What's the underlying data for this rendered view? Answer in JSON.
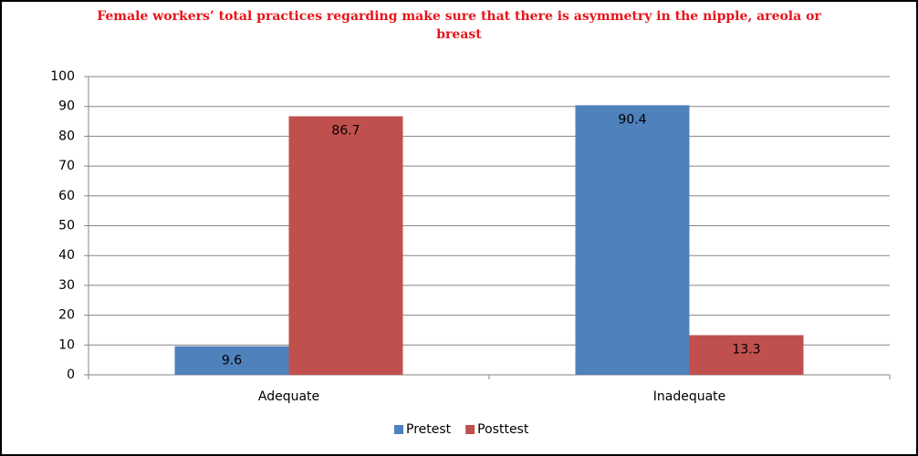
{
  "chart_data": {
    "type": "bar",
    "title": "Female workers’ total practices regarding make sure that there is asymmetry in the nipple, areola or breast",
    "categories": [
      "Adequate",
      "Inadequate"
    ],
    "series": [
      {
        "name": "Pretest",
        "color": "#4f81bd",
        "values": [
          9.6,
          90.4
        ]
      },
      {
        "name": "Posttest",
        "color": "#c0504d",
        "values": [
          86.7,
          13.3
        ]
      }
    ],
    "ylim": [
      0,
      100
    ],
    "yticks": [
      0,
      10,
      20,
      30,
      40,
      50,
      60,
      70,
      80,
      90,
      100
    ],
    "grid": true,
    "legend": "bottom"
  }
}
